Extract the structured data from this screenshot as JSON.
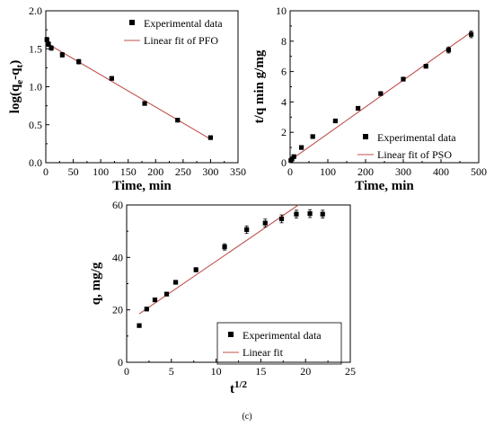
{
  "chart_data": [
    {
      "type": "scatter",
      "xlabel": "Time, min",
      "ylabel": "log(q",
      "ylabel_sub1": "e",
      "ylabel_mid": "-q",
      "ylabel_sub2": "t",
      "ylabel_close": ")",
      "xlim": [
        0,
        350
      ],
      "ylim": [
        0.0,
        2.0
      ],
      "xticks": [
        "0",
        "50",
        "100",
        "150",
        "200",
        "250",
        "300",
        "350"
      ],
      "yticks": [
        "0.0",
        "0.5",
        "1.0",
        "1.5",
        "2.0"
      ],
      "legend_position": "top-right",
      "series": [
        {
          "name": "Experimental data",
          "x": [
            2,
            5,
            10,
            30,
            60,
            120,
            180,
            240,
            300
          ],
          "y": [
            1.62,
            1.56,
            1.51,
            1.42,
            1.33,
            1.11,
            0.78,
            0.56,
            0.33
          ],
          "err": [
            0.03,
            0.03,
            0.03,
            0.03,
            0.03,
            0.02,
            0.02,
            0.02,
            0.02
          ]
        },
        {
          "name": "Linear fit of PFO",
          "x": [
            0,
            300
          ],
          "y": [
            1.58,
            0.31
          ]
        }
      ],
      "colors": {
        "points": "#000000",
        "fit": "#c0504d"
      }
    },
    {
      "type": "scatter",
      "xlabel": "Time, min",
      "ylabel": "t/q min g/mg",
      "xlim": [
        0,
        500
      ],
      "ylim": [
        0,
        10
      ],
      "xticks": [
        "0",
        "100",
        "200",
        "300",
        "400",
        "500"
      ],
      "yticks": [
        "0",
        "2",
        "4",
        "6",
        "8",
        "10"
      ],
      "legend_position": "bottom-right",
      "series": [
        {
          "name": "Experimental data",
          "x": [
            2,
            5,
            10,
            30,
            60,
            120,
            180,
            240,
            300,
            360,
            420,
            480
          ],
          "y": [
            0.15,
            0.25,
            0.4,
            1.0,
            1.72,
            2.75,
            3.58,
            4.55,
            5.5,
            6.35,
            7.42,
            8.45
          ],
          "err": [
            0.05,
            0.05,
            0.05,
            0.05,
            0.05,
            0.05,
            0.05,
            0.05,
            0.1,
            0.12,
            0.2,
            0.22
          ]
        },
        {
          "name": "Linear fit of PSO",
          "x": [
            0,
            480
          ],
          "y": [
            0.15,
            8.6
          ]
        }
      ],
      "colors": {
        "points": "#000000",
        "fit": "#c0504d"
      }
    },
    {
      "type": "scatter",
      "xlabel": "t",
      "xlabel_sup": "1/2",
      "ylabel": "q, mg/g",
      "xlim": [
        0,
        25
      ],
      "ylim": [
        0,
        60
      ],
      "xticks": [
        "0",
        "5",
        "10",
        "15",
        "20",
        "25"
      ],
      "yticks": [
        "0",
        "20",
        "40",
        "60"
      ],
      "legend_position": "bottom-right",
      "series": [
        {
          "name": "Experimental data",
          "x": [
            1.41,
            2.24,
            3.16,
            4.47,
            5.48,
            7.75,
            10.95,
            13.42,
            15.49,
            17.32,
            18.97,
            20.49,
            21.91
          ],
          "y": [
            14.0,
            20.3,
            23.8,
            26.0,
            30.5,
            35.3,
            44.0,
            50.6,
            53.1,
            54.7,
            56.5,
            56.7,
            56.5
          ],
          "err": [
            0.6,
            0.6,
            0.6,
            0.6,
            0.7,
            0.8,
            1.2,
            1.4,
            1.5,
            1.5,
            1.5,
            1.5,
            1.5
          ]
        },
        {
          "name": "Linear fit",
          "x": [
            1.41,
            19.2
          ],
          "y": [
            18.5,
            60.0
          ]
        }
      ],
      "colors": {
        "points": "#000000",
        "fit": "#c0504d"
      }
    }
  ],
  "caption": "(c)"
}
